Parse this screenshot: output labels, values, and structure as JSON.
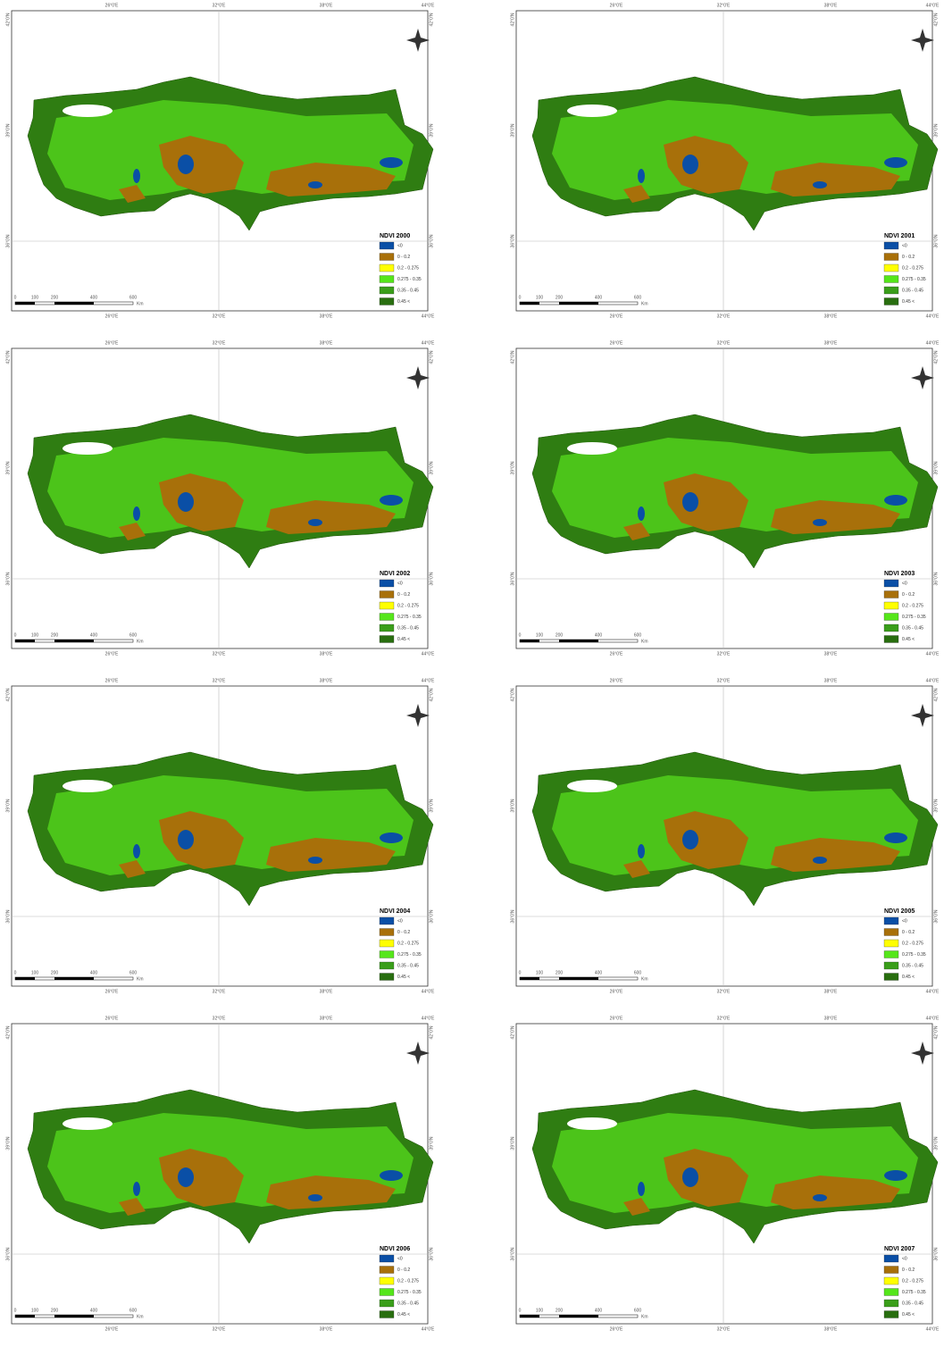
{
  "panels": [
    {
      "title": "NDVI 2000"
    },
    {
      "title": "NDVI 2001"
    },
    {
      "title": "NDVI 2002"
    },
    {
      "title": "NDVI 2003"
    },
    {
      "title": "NDVI 2004"
    },
    {
      "title": "NDVI 2005"
    },
    {
      "title": "NDVI 2006"
    },
    {
      "title": "NDVI 2007"
    }
  ],
  "legend": [
    {
      "label": "<0",
      "color": "#0a4fa6"
    },
    {
      "label": "0 - 0.2",
      "color": "#a8700a"
    },
    {
      "label": "0.2 - 0.275",
      "color": "#ffff00"
    },
    {
      "label": "0.275 - 0.35",
      "color": "#55e61a"
    },
    {
      "label": "0.35 - 0.45",
      "color": "#3a9e1a"
    },
    {
      "label": "0.45 <",
      "color": "#286e0f"
    }
  ],
  "scale_bar": [
    "0",
    "100",
    "200",
    "400",
    "600"
  ],
  "scale_unit": "Km",
  "longitude_labels": [
    "26°0'E",
    "32°0'E",
    "38°0'E",
    "44°0'E"
  ],
  "latitude_labels": [
    "42°0'N",
    "39°0'N",
    "36°0'N"
  ]
}
